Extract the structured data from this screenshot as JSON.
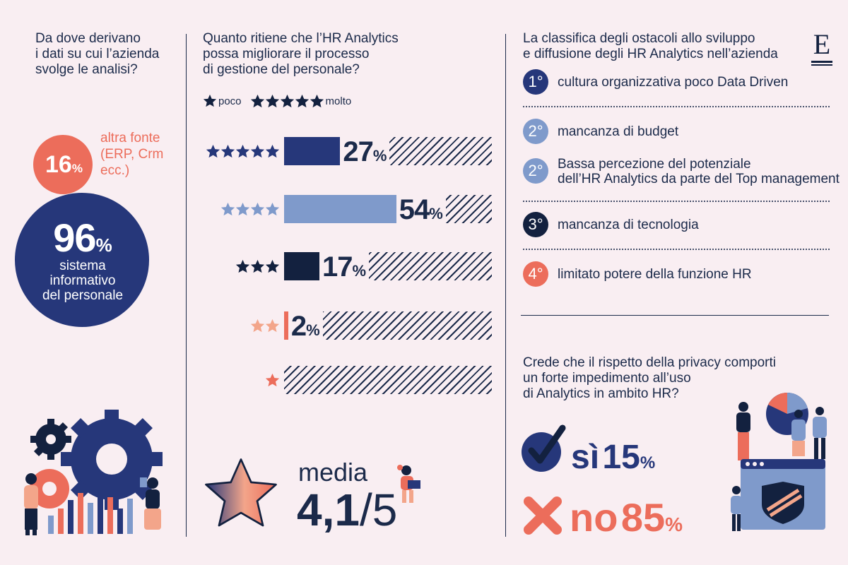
{
  "q1": {
    "question": [
      "Da dove derivano",
      "i dati su cui l’azienda",
      "svolge le analisi?"
    ],
    "other_pct": "16",
    "other_label": [
      "altra fonte",
      "(ERP, Crm",
      "ecc.)"
    ],
    "main_pct": "96",
    "main_label": [
      "sistema",
      "informativo",
      "del personale"
    ],
    "pct_sign": "%"
  },
  "q2": {
    "question": [
      "Quanto ritiene che l’HR Analytics",
      "possa migliorare il processo",
      "di gestione del personale?"
    ],
    "legend_low": "poco",
    "legend_high": "molto",
    "average_label": "media",
    "average_value": "4,1",
    "average_max": "/5"
  },
  "q3": {
    "title": [
      "La classifica degli ostacoli allo sviluppo",
      "e diffusione degli HR Analytics nell’azienda"
    ],
    "items": [
      {
        "rank": "1°",
        "text": [
          "cultura organizzativa poco Data Driven"
        ],
        "color": "#26377a"
      },
      {
        "rank": "2°",
        "text": [
          "mancanza di budget"
        ],
        "color": "#7f9acb"
      },
      {
        "rank": "2°",
        "text": [
          "Bassa percezione del potenziale",
          "dell’HR Analytics da parte del Top management"
        ],
        "color": "#7f9acb"
      },
      {
        "rank": "3°",
        "text": [
          "mancanza di tecnologia"
        ],
        "color": "#13213f"
      },
      {
        "rank": "4°",
        "text": [
          "limitato potere della funzione HR"
        ],
        "color": "#ec6d5b"
      }
    ]
  },
  "q4": {
    "question": [
      "Crede che il rispetto della privacy comporti",
      "un forte impedimento all’uso",
      "di Analytics in ambito HR?"
    ],
    "yes_label": "sì",
    "yes_value": "15",
    "no_label": "no",
    "no_value": "85",
    "pct_sign": "%"
  },
  "logo": {
    "letter": "E"
  },
  "colors": {
    "navy": "#26377a",
    "dark": "#13213f",
    "light_blue": "#7f9acb",
    "salmon": "#ec6d5b",
    "peach": "#f3a58a",
    "background": "#f9eef2"
  },
  "chart_data": [
    {
      "type": "pie",
      "categories": [
        "sistema informativo del personale",
        "altra fonte (ERP, Crm ecc.)"
      ],
      "values": [
        96,
        16
      ]
    },
    {
      "type": "bar",
      "categories": [
        "5 stelle",
        "4 stelle",
        "3 stelle",
        "2 stelle",
        "1 stella"
      ],
      "values": [
        27,
        54,
        17,
        2,
        0
      ],
      "ylim": [
        0,
        100
      ]
    },
    {
      "type": "bar",
      "categories": [
        "sì",
        "no"
      ],
      "values": [
        15,
        85
      ]
    }
  ]
}
